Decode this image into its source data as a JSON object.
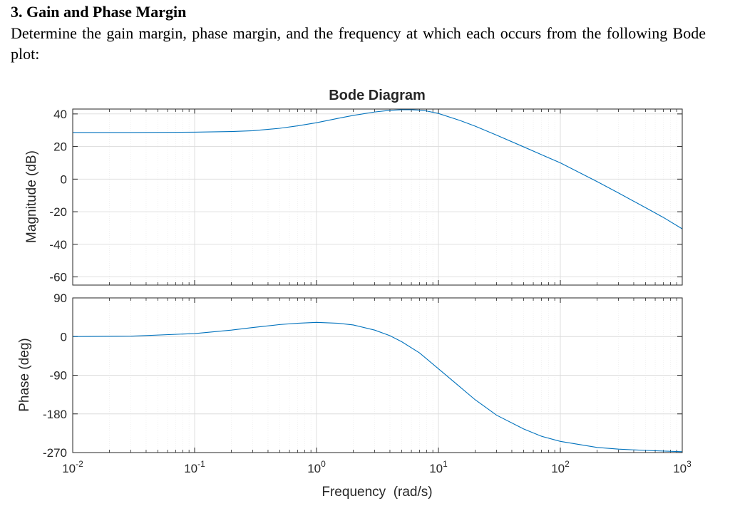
{
  "document": {
    "heading": "3. Gain and Phase Margin",
    "question": "Determine the gain margin, phase margin, and the frequency at which each occurs from the following Bode plot:"
  },
  "colors": {
    "series": "#0072bd",
    "axis": "#262626",
    "grid": "#dcdcdc",
    "minor_grid": "#ececec"
  },
  "chart_data": {
    "type": "line",
    "title": "Bode Diagram",
    "xlabel": "Frequency  (rad/s)",
    "xscale": "log",
    "xlim": [
      0.01,
      1000
    ],
    "x_ticks": [
      {
        "value": 0.01,
        "base": "10",
        "exp": "-2"
      },
      {
        "value": 0.1,
        "base": "10",
        "exp": "-1"
      },
      {
        "value": 1,
        "base": "10",
        "exp": "0"
      },
      {
        "value": 10,
        "base": "10",
        "exp": "1"
      },
      {
        "value": 100,
        "base": "10",
        "exp": "2"
      },
      {
        "value": 1000,
        "base": "10",
        "exp": "3"
      }
    ],
    "grid": true,
    "magnitude": {
      "ylabel": "Magnitude (dB)",
      "ylim": [
        -65,
        43
      ],
      "yticks": [
        40,
        20,
        0,
        -20,
        -40,
        -60
      ],
      "ytick_labels": [
        "40",
        "20",
        "0",
        "-20",
        "-40",
        "-60"
      ],
      "x": [
        0.01,
        0.03,
        0.1,
        0.2,
        0.3,
        0.5,
        0.7,
        1,
        1.5,
        2,
        3,
        4,
        5,
        6,
        7,
        8,
        10,
        15,
        20,
        30,
        50,
        70,
        100,
        200,
        300,
        500,
        700,
        1000
      ],
      "y": [
        28.6,
        28.6,
        28.8,
        29.2,
        29.7,
        31.2,
        32.7,
        34.6,
        37.3,
        39.1,
        41.2,
        42.2,
        42.6,
        42.6,
        42.3,
        41.8,
        40.3,
        36.0,
        32.5,
        27.0,
        19.8,
        15.0,
        10.0,
        -1.5,
        -8.5,
        -17.5,
        -23.5,
        -30.5
      ]
    },
    "phase": {
      "ylabel": "Phase (deg)",
      "ylim": [
        -270,
        90
      ],
      "yticks": [
        90,
        0,
        -90,
        -180,
        -270
      ],
      "ytick_labels": [
        "90",
        "0",
        "-90",
        "-180",
        "-270"
      ],
      "x": [
        0.01,
        0.03,
        0.1,
        0.2,
        0.3,
        0.5,
        0.7,
        1,
        1.5,
        2,
        3,
        4,
        5,
        7,
        10,
        15,
        20,
        30,
        50,
        70,
        100,
        200,
        300,
        500,
        1000
      ],
      "y": [
        0,
        1,
        7,
        15,
        21,
        28,
        31,
        33,
        31,
        27,
        15,
        2,
        -12,
        -38,
        -75,
        -117,
        -147,
        -183,
        -215,
        -232,
        -244,
        -258,
        -262,
        -265,
        -268
      ]
    }
  }
}
